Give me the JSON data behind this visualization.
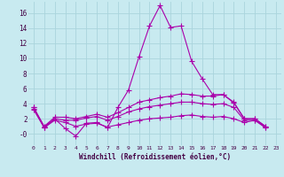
{
  "background_color": "#c8eaf0",
  "grid_color": "#aad4dc",
  "line_color": "#aa00aa",
  "x_labels": [
    "0",
    "1",
    "2",
    "3",
    "4",
    "5",
    "6",
    "7",
    "8",
    "9",
    "10",
    "11",
    "12",
    "13",
    "14",
    "15",
    "16",
    "17",
    "18",
    "19",
    "20",
    "21",
    "22",
    "23"
  ],
  "xlabel": "Windchill (Refroidissement éolien,°C)",
  "ylim": [
    -1.5,
    17.5
  ],
  "xlim": [
    -0.5,
    23.5
  ],
  "yticks": [
    0,
    2,
    4,
    6,
    8,
    10,
    12,
    14,
    16
  ],
  "ytick_labels": [
    "-0",
    "2",
    "4",
    "6",
    "8",
    "10",
    "12",
    "14",
    "16"
  ],
  "series": [
    [
      3.5,
      0.8,
      2.0,
      0.7,
      -0.3,
      1.4,
      1.5,
      0.8,
      3.5,
      5.8,
      10.2,
      14.3,
      17.0,
      14.1,
      14.3,
      9.6,
      7.3,
      5.2,
      5.2,
      4.1,
      2.0,
      2.0,
      1.0
    ],
    [
      3.5,
      1.0,
      2.2,
      2.2,
      2.0,
      2.3,
      2.6,
      2.2,
      2.8,
      3.5,
      4.2,
      4.5,
      4.8,
      5.0,
      5.3,
      5.2,
      5.0,
      5.0,
      5.2,
      4.2,
      2.0,
      2.0,
      1.0
    ],
    [
      3.3,
      0.9,
      2.0,
      1.8,
      1.8,
      2.1,
      2.3,
      1.8,
      2.3,
      2.9,
      3.3,
      3.6,
      3.8,
      4.0,
      4.2,
      4.2,
      4.0,
      3.9,
      4.0,
      3.5,
      1.8,
      1.8,
      0.9
    ],
    [
      3.2,
      0.8,
      1.8,
      1.5,
      1.0,
      1.3,
      1.4,
      0.9,
      1.2,
      1.5,
      1.8,
      2.0,
      2.1,
      2.2,
      2.4,
      2.5,
      2.3,
      2.2,
      2.3,
      2.0,
      1.5,
      1.8,
      0.8
    ]
  ],
  "series_x": [
    0,
    1,
    2,
    3,
    4,
    5,
    6,
    7,
    8,
    9,
    10,
    11,
    12,
    13,
    14,
    15,
    16,
    17,
    18,
    19,
    20,
    21,
    22
  ],
  "marker": "+",
  "markersize": 4,
  "linewidth": 0.8
}
